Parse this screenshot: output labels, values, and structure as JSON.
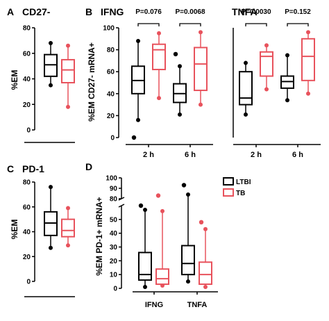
{
  "colors": {
    "ltbi": "#000000",
    "tb": "#e8525c"
  },
  "chart_data": [
    {
      "panel": "A",
      "title": "CD27-",
      "type": "box",
      "ylabel": "%EM",
      "ylim": [
        0,
        80
      ],
      "yticks": [
        "0",
        "20",
        "40",
        "60",
        "80"
      ],
      "groups": [
        {
          "series": "LTBI",
          "whisker_low": 35,
          "q1": 42,
          "median": 51,
          "q3": 59,
          "whisker_high": 68,
          "outliers": []
        },
        {
          "series": "TB",
          "whisker_low": 18,
          "q1": 37,
          "median": 47,
          "q3": 55,
          "whisker_high": 66,
          "outliers": []
        }
      ]
    },
    {
      "panel": "B",
      "title": "IFNG",
      "type": "box",
      "ylabel": "%EM CD27- mRNA+",
      "ylim": [
        0,
        100
      ],
      "yticks": [
        "0",
        "20",
        "40",
        "60",
        "80",
        "100"
      ],
      "categories": [
        "2 h",
        "6 h"
      ],
      "comparisons": [
        {
          "category": "2 h",
          "label": "P=0.076"
        },
        {
          "category": "6 h",
          "label": "P=0.0068"
        }
      ],
      "groups": [
        {
          "category": "2 h",
          "series": "LTBI",
          "whisker_low": 16,
          "q1": 40,
          "median": 52,
          "q3": 65,
          "whisker_high": 88,
          "outliers": [
            0
          ]
        },
        {
          "category": "2 h",
          "series": "TB",
          "whisker_low": 36,
          "q1": 62,
          "median": 80,
          "q3": 85,
          "whisker_high": 95,
          "outliers": []
        },
        {
          "category": "6 h",
          "series": "LTBI",
          "whisker_low": 21,
          "q1": 32,
          "median": 40,
          "q3": 49,
          "whisker_high": 65,
          "outliers": [
            76
          ]
        },
        {
          "category": "6 h",
          "series": "TB",
          "whisker_low": 30,
          "q1": 43,
          "median": 67,
          "q3": 82,
          "whisker_high": 96,
          "outliers": []
        }
      ]
    },
    {
      "panel": "B",
      "title": "TNFA",
      "type": "box",
      "ylim": [
        0,
        100
      ],
      "categories": [
        "2 h",
        "6 h"
      ],
      "comparisons": [
        {
          "category": "2 h",
          "label": "P=0.0030"
        },
        {
          "category": "6 h",
          "label": "P=0.152"
        }
      ],
      "groups": [
        {
          "category": "2 h",
          "series": "LTBI",
          "whisker_low": 21,
          "q1": 30,
          "median": 36,
          "q3": 60,
          "whisker_high": 68,
          "outliers": []
        },
        {
          "category": "2 h",
          "series": "TB",
          "whisker_low": 44,
          "q1": 56,
          "median": 74,
          "q3": 78,
          "whisker_high": 84,
          "outliers": []
        },
        {
          "category": "6 h",
          "series": "LTBI",
          "whisker_low": 34,
          "q1": 45,
          "median": 51,
          "q3": 56,
          "whisker_high": 75,
          "outliers": []
        },
        {
          "category": "6 h",
          "series": "TB",
          "whisker_low": 40,
          "q1": 52,
          "median": 74,
          "q3": 90,
          "whisker_high": 96,
          "outliers": []
        }
      ]
    },
    {
      "panel": "C",
      "title": "PD-1",
      "type": "box",
      "ylabel": "%EM",
      "ylim": [
        0,
        80
      ],
      "yticks": [
        "0",
        "20",
        "40",
        "60",
        "80"
      ],
      "groups": [
        {
          "series": "LTBI",
          "whisker_low": 27,
          "q1": 37,
          "median": 47,
          "q3": 56,
          "whisker_high": 76,
          "outliers": []
        },
        {
          "series": "TB",
          "whisker_low": 29,
          "q1": 36,
          "median": 41,
          "q3": 50,
          "whisker_high": 59,
          "outliers": []
        }
      ]
    },
    {
      "panel": "D",
      "title": "",
      "type": "box",
      "ylabel": "%EM PD-1+ mRNA+",
      "ylim": [
        0,
        100
      ],
      "axis_break": [
        60,
        80
      ],
      "yticks": [
        "0",
        "10",
        "20",
        "30",
        "40",
        "50",
        "80",
        "90",
        "100"
      ],
      "categories": [
        "IFNG",
        "TNFA"
      ],
      "groups": [
        {
          "category": "IFNG",
          "series": "LTBI",
          "whisker_low": 1,
          "q1": 6,
          "median": 10,
          "q3": 26,
          "whisker_high": 57,
          "outliers": [
            60
          ]
        },
        {
          "category": "IFNG",
          "series": "TB",
          "whisker_low": 2,
          "q1": 3,
          "median": 7,
          "q3": 14,
          "whisker_high": 56,
          "outliers": [
            83
          ]
        },
        {
          "category": "TNFA",
          "series": "LTBI",
          "whisker_low": 5,
          "q1": 10,
          "median": 18,
          "q3": 31,
          "whisker_high": 84,
          "outliers": [
            93
          ]
        },
        {
          "category": "TNFA",
          "series": "TB",
          "whisker_low": 1,
          "q1": 3,
          "median": 10,
          "q3": 19,
          "whisker_high": 43,
          "outliers": [
            48
          ]
        }
      ]
    }
  ],
  "legend": [
    {
      "series": "LTBI",
      "label": "LTBI"
    },
    {
      "series": "TB",
      "label": "TB"
    }
  ]
}
